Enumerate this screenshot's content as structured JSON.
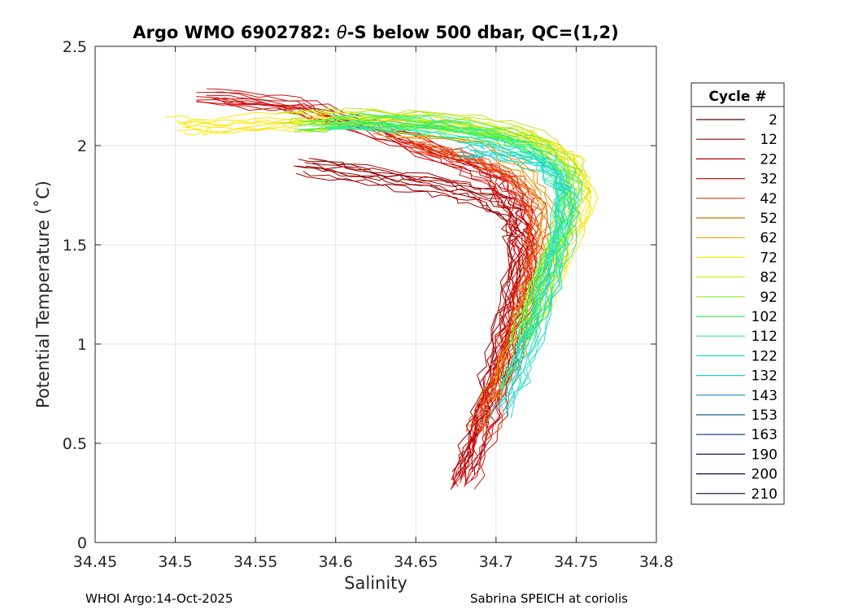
{
  "chart_data": {
    "type": "line",
    "title": "Argo WMO 6902782: θ-S below 500 dbar,  QC=(1,2)",
    "title_prefix": "Argo WMO 6902782: ",
    "title_symbol": "θ",
    "title_suffix": "-S below 500 dbar,  QC=(1,2)",
    "xlabel": "Salinity",
    "ylabel": "Potential Temperature (˚C)",
    "xlim": [
      34.45,
      34.8
    ],
    "ylim": [
      0,
      2.5
    ],
    "xticks": [
      "34.45",
      "34.5",
      "34.55",
      "34.6",
      "34.65",
      "34.7",
      "34.75",
      "34.8"
    ],
    "yticks": [
      "0",
      "0.5",
      "1",
      "1.5",
      "2",
      "2.5"
    ],
    "grid": true,
    "legend_position": "outside-right",
    "legend": {
      "title": "Cycle #",
      "entries": [
        {
          "label": "2",
          "color": "#600000"
        },
        {
          "label": "12",
          "color": "#8c0000"
        },
        {
          "label": "22",
          "color": "#b80000"
        },
        {
          "label": "32",
          "color": "#d91212"
        },
        {
          "label": "42",
          "color": "#e63a0a"
        },
        {
          "label": "52",
          "color": "#d86e00"
        },
        {
          "label": "62",
          "color": "#e0a000"
        },
        {
          "label": "72",
          "color": "#ffee00"
        },
        {
          "label": "82",
          "color": "#ccee22"
        },
        {
          "label": "92",
          "color": "#88ee33"
        },
        {
          "label": "102",
          "color": "#44ee55"
        },
        {
          "label": "112",
          "color": "#22ee99"
        },
        {
          "label": "122",
          "color": "#22ddcc"
        },
        {
          "label": "132",
          "color": "#22cce0"
        },
        {
          "label": "143",
          "color": "#1090b0"
        },
        {
          "label": "153",
          "color": "#106090"
        },
        {
          "label": "163",
          "color": "#103070"
        },
        {
          "label": "190",
          "color": "#0a1a55"
        },
        {
          "label": "200",
          "color": "#080a40"
        },
        {
          "label": "210",
          "color": "#050530"
        }
      ]
    },
    "series": [
      {
        "group": "dark-red",
        "color": "#9a0000",
        "count": 10,
        "base": [
          [
            34.68,
            0.32
          ],
          [
            34.69,
            0.6
          ],
          [
            34.7,
            0.9
          ],
          [
            34.71,
            1.2
          ],
          [
            34.715,
            1.5
          ],
          [
            34.71,
            1.65
          ],
          [
            34.69,
            1.75
          ],
          [
            34.66,
            1.8
          ],
          [
            34.62,
            1.85
          ],
          [
            34.58,
            1.9
          ]
        ]
      },
      {
        "group": "red",
        "color": "#d01010",
        "count": 12,
        "base": [
          [
            34.68,
            0.3
          ],
          [
            34.695,
            0.6
          ],
          [
            34.705,
            0.9
          ],
          [
            34.715,
            1.2
          ],
          [
            34.72,
            1.5
          ],
          [
            34.715,
            1.7
          ],
          [
            34.7,
            1.85
          ],
          [
            34.67,
            1.95
          ],
          [
            34.62,
            2.1
          ],
          [
            34.58,
            2.2
          ],
          [
            34.52,
            2.25
          ]
        ]
      },
      {
        "group": "orange-red",
        "color": "#e84a10",
        "count": 10,
        "base": [
          [
            34.69,
            0.55
          ],
          [
            34.705,
            0.85
          ],
          [
            34.715,
            1.15
          ],
          [
            34.725,
            1.45
          ],
          [
            34.725,
            1.7
          ],
          [
            34.71,
            1.85
          ],
          [
            34.68,
            1.95
          ],
          [
            34.65,
            2.0
          ]
        ]
      },
      {
        "group": "orange",
        "color": "#e89000",
        "count": 5,
        "base": [
          [
            34.7,
            0.75
          ],
          [
            34.715,
            1.05
          ],
          [
            34.73,
            1.4
          ],
          [
            34.735,
            1.7
          ],
          [
            34.72,
            1.9
          ],
          [
            34.69,
            2.05
          ],
          [
            34.63,
            2.1
          ]
        ]
      },
      {
        "group": "yellow",
        "color": "#ffe600",
        "count": 8,
        "base": [
          [
            34.72,
            1.1
          ],
          [
            34.74,
            1.45
          ],
          [
            34.755,
            1.75
          ],
          [
            34.745,
            1.95
          ],
          [
            34.72,
            2.05
          ],
          [
            34.68,
            2.1
          ],
          [
            34.62,
            2.13
          ],
          [
            34.56,
            2.12
          ],
          [
            34.52,
            2.1
          ],
          [
            34.5,
            2.11
          ]
        ]
      },
      {
        "group": "yellow-green",
        "color": "#bce820",
        "count": 8,
        "base": [
          [
            34.72,
            1.05
          ],
          [
            34.735,
            1.4
          ],
          [
            34.75,
            1.7
          ],
          [
            34.745,
            1.9
          ],
          [
            34.72,
            2.05
          ],
          [
            34.67,
            2.12
          ],
          [
            34.6,
            2.14
          ],
          [
            34.57,
            2.13
          ]
        ]
      },
      {
        "group": "green",
        "color": "#55ee44",
        "count": 10,
        "base": [
          [
            34.715,
            1.0
          ],
          [
            34.73,
            1.35
          ],
          [
            34.745,
            1.65
          ],
          [
            34.745,
            1.88
          ],
          [
            34.72,
            2.02
          ],
          [
            34.68,
            2.1
          ],
          [
            34.63,
            2.13
          ],
          [
            34.58,
            2.1
          ]
        ]
      },
      {
        "group": "aqua-green",
        "color": "#22ee99",
        "count": 8,
        "base": [
          [
            34.71,
            0.8
          ],
          [
            34.725,
            1.15
          ],
          [
            34.74,
            1.5
          ],
          [
            34.745,
            1.8
          ],
          [
            34.73,
            1.95
          ],
          [
            34.7,
            2.05
          ],
          [
            34.66,
            2.1
          ],
          [
            34.6,
            2.12
          ]
        ]
      },
      {
        "group": "cyan",
        "color": "#22d8d8",
        "count": 8,
        "base": [
          [
            34.705,
            0.66
          ],
          [
            34.72,
            0.95
          ],
          [
            34.735,
            1.3
          ],
          [
            34.745,
            1.6
          ],
          [
            34.745,
            1.8
          ],
          [
            34.73,
            1.92
          ],
          [
            34.7,
            1.97
          ],
          [
            34.68,
            1.98
          ]
        ]
      }
    ]
  },
  "footer": {
    "left": "WHOI Argo:14-Oct-2025",
    "right": "Sabrina SPEICH at coriolis"
  }
}
